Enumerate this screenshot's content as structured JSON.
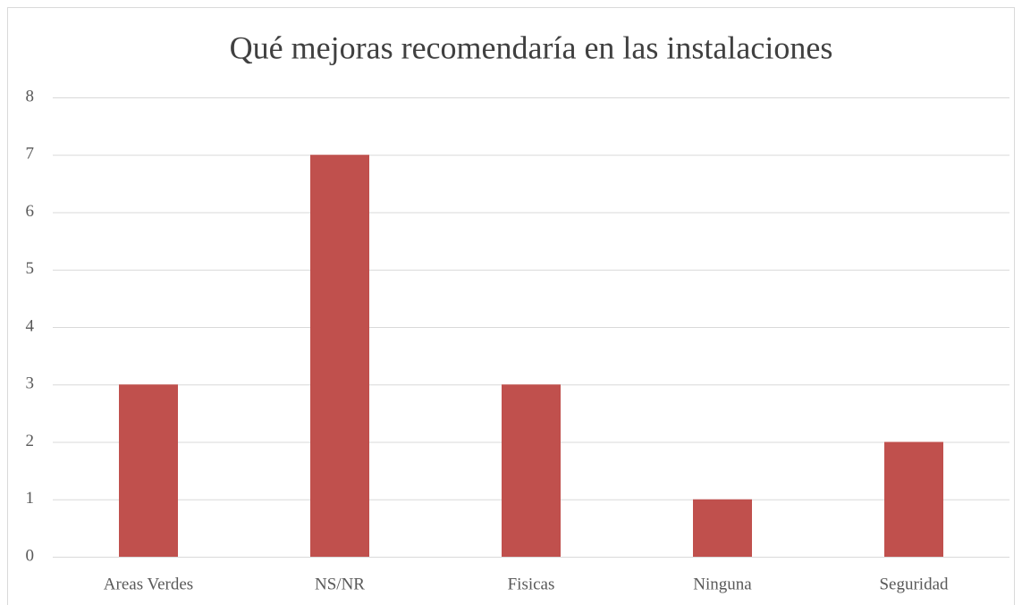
{
  "chart_data": {
    "type": "bar",
    "title": "Qué mejoras recomendaría en las instalaciones",
    "categories": [
      "Areas Verdes",
      "NS/NR",
      "Fisicas",
      "Ninguna",
      "Seguridad"
    ],
    "values": [
      3,
      7,
      3,
      1,
      2
    ],
    "color": "#c0504d",
    "ylim": [
      0,
      8
    ],
    "yticks": [
      0,
      1,
      2,
      3,
      4,
      5,
      6,
      7,
      8
    ],
    "grid": true
  }
}
